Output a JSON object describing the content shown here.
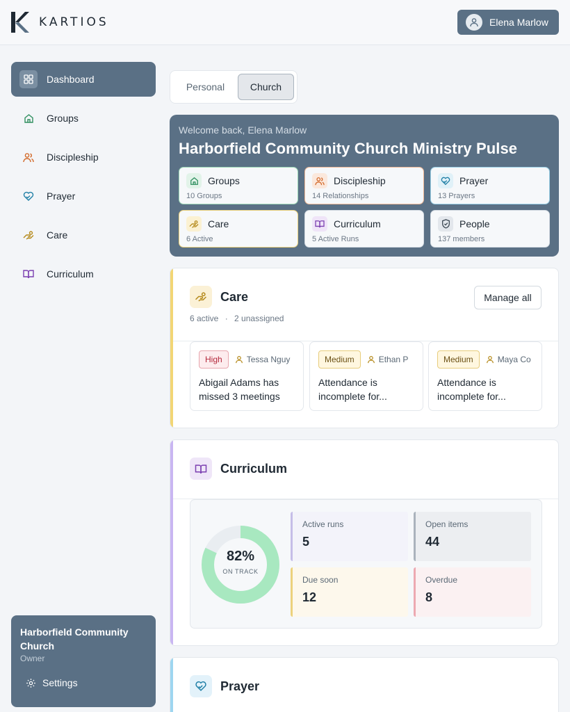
{
  "app": {
    "brand": "KARTIOS",
    "user_name": "Elena Marlow"
  },
  "toggle": {
    "personal": "Personal",
    "church": "Church"
  },
  "sidebar": {
    "items": [
      {
        "label": "Dashboard",
        "icon": "dashboard-icon"
      },
      {
        "label": "Groups",
        "icon": "home-icon"
      },
      {
        "label": "Discipleship",
        "icon": "people-icon"
      },
      {
        "label": "Prayer",
        "icon": "heart-hands-icon"
      },
      {
        "label": "Care",
        "icon": "care-hand-icon"
      },
      {
        "label": "Curriculum",
        "icon": "book-icon"
      }
    ],
    "org": {
      "name": "Harborfield Community Church",
      "role": "Owner",
      "settings": "Settings"
    }
  },
  "hero": {
    "welcome": "Welcome back, Elena Marlow",
    "title": "Harborfield Community Church Ministry Pulse",
    "tiles": [
      {
        "label": "Groups",
        "sub": "10 Groups",
        "color": "#2f8f5f"
      },
      {
        "label": "Discipleship",
        "sub": "14 Relationships",
        "color": "#d36b2c"
      },
      {
        "label": "Prayer",
        "sub": "13 Prayers",
        "color": "#1f7fa6"
      },
      {
        "label": "Care",
        "sub": "6 Active",
        "color": "#b58a1b"
      },
      {
        "label": "Curriculum",
        "sub": "5 Active Runs",
        "color": "#7b3fb0"
      },
      {
        "label": "People",
        "sub": "137 members",
        "color": "#4a5560"
      }
    ]
  },
  "care": {
    "title": "Care",
    "active": "6 active",
    "separator": "·",
    "unassigned": "2 unassigned",
    "manage": "Manage all",
    "items": [
      {
        "priority": "High",
        "assignee": "Tessa Nguy",
        "text": "Abigail Adams has missed 3 meetings"
      },
      {
        "priority": "Medium",
        "assignee": "Ethan P",
        "text": "Attendance is incomplete for..."
      },
      {
        "priority": "Medium",
        "assignee": "Maya Co",
        "text": "Attendance is incomplete for..."
      }
    ]
  },
  "curriculum": {
    "title": "Curriculum",
    "progress_pct": "82%",
    "progress_value": 0.82,
    "progress_label": "ON TRACK",
    "stats": [
      {
        "label": "Active runs",
        "value": "5"
      },
      {
        "label": "Open items",
        "value": "44"
      },
      {
        "label": "Due soon",
        "value": "12"
      },
      {
        "label": "Overdue",
        "value": "8"
      }
    ]
  },
  "prayer": {
    "title": "Prayer"
  },
  "colors": {
    "slate": "#5a7085",
    "care_accent": "#f2d675",
    "curriculum_accent": "#c9b6f2",
    "prayer_accent": "#9ed6f0",
    "donut": "#a8e8c0"
  }
}
